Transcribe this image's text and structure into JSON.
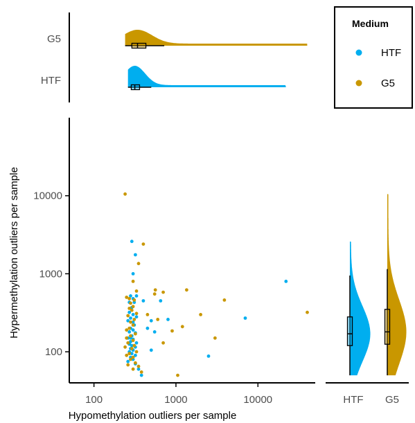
{
  "colors": {
    "HTF": "#00AEEF",
    "G5": "#C99700",
    "axis": "#000000",
    "text": "#4D4D4D"
  },
  "legend": {
    "title": "Medium",
    "items": [
      "HTF",
      "G5"
    ],
    "placement": "top-right"
  },
  "chart_data": [
    {
      "type": "scatter",
      "name": "main",
      "xlabel": "Hypomethylation outliers per sample",
      "ylabel": "Hypermethylation outliers per sample",
      "xscale": "log",
      "yscale": "log",
      "xlim": [
        50,
        50000
      ],
      "ylim": [
        40,
        100000
      ],
      "xticks": [
        100,
        1000,
        10000
      ],
      "xtick_labels": [
        "100",
        "1000",
        "10000"
      ],
      "yticks": [
        100,
        1000,
        10000
      ],
      "ytick_labels": [
        "100",
        "1000",
        "10000"
      ],
      "grid": false,
      "series": [
        {
          "name": "HTF",
          "points": [
            [
              290,
              2600
            ],
            [
              320,
              1750
            ],
            [
              300,
              1000
            ],
            [
              330,
              520
            ],
            [
              280,
              520
            ],
            [
              300,
              480
            ],
            [
              270,
              430
            ],
            [
              310,
              430
            ],
            [
              290,
              370
            ],
            [
              270,
              320
            ],
            [
              300,
              300
            ],
            [
              330,
              280
            ],
            [
              280,
              270
            ],
            [
              260,
              250
            ],
            [
              300,
              240
            ],
            [
              310,
              220
            ],
            [
              280,
              200
            ],
            [
              300,
              190
            ],
            [
              270,
              180
            ],
            [
              320,
              175
            ],
            [
              290,
              160
            ],
            [
              280,
              150
            ],
            [
              260,
              150
            ],
            [
              300,
              145
            ],
            [
              280,
              135
            ],
            [
              330,
              130
            ],
            [
              270,
              125
            ],
            [
              290,
              120
            ],
            [
              320,
              115
            ],
            [
              280,
              110
            ],
            [
              300,
              105
            ],
            [
              270,
              100
            ],
            [
              290,
              95
            ],
            [
              320,
              90
            ],
            [
              280,
              85
            ],
            [
              300,
              80
            ],
            [
              260,
              75
            ],
            [
              320,
              70
            ],
            [
              350,
              60
            ],
            [
              380,
              50
            ],
            [
              450,
              200
            ],
            [
              500,
              250
            ],
            [
              650,
              450
            ],
            [
              800,
              260
            ],
            [
              22000,
              800
            ],
            [
              7000,
              270
            ],
            [
              2500,
              88
            ],
            [
              400,
              450
            ],
            [
              550,
              180
            ],
            [
              500,
              105
            ]
          ]
        },
        {
          "name": "G5",
          "points": [
            [
              240,
              10500
            ],
            [
              400,
              2400
            ],
            [
              350,
              1350
            ],
            [
              300,
              800
            ],
            [
              330,
              600
            ],
            [
              250,
              500
            ],
            [
              270,
              480
            ],
            [
              310,
              460
            ],
            [
              280,
              420
            ],
            [
              300,
              380
            ],
            [
              270,
              360
            ],
            [
              290,
              340
            ],
            [
              330,
              310
            ],
            [
              260,
              290
            ],
            [
              310,
              260
            ],
            [
              280,
              240
            ],
            [
              300,
              220
            ],
            [
              270,
              200
            ],
            [
              250,
              190
            ],
            [
              320,
              170
            ],
            [
              280,
              160
            ],
            [
              250,
              150
            ],
            [
              300,
              140
            ],
            [
              260,
              130
            ],
            [
              310,
              120
            ],
            [
              240,
              115
            ],
            [
              290,
              110
            ],
            [
              330,
              100
            ],
            [
              270,
              95
            ],
            [
              250,
              90
            ],
            [
              300,
              85
            ],
            [
              280,
              80
            ],
            [
              320,
              72
            ],
            [
              260,
              68
            ],
            [
              350,
              65
            ],
            [
              300,
              60
            ],
            [
              380,
              55
            ],
            [
              1050,
              50
            ],
            [
              560,
              620
            ],
            [
              700,
              580
            ],
            [
              1350,
              620
            ],
            [
              550,
              550
            ],
            [
              3900,
              460
            ],
            [
              40000,
              320
            ],
            [
              3000,
              150
            ],
            [
              1200,
              210
            ],
            [
              900,
              185
            ],
            [
              600,
              260
            ],
            [
              450,
              300
            ],
            [
              2000,
              300
            ],
            [
              700,
              130
            ]
          ]
        }
      ]
    },
    {
      "type": "density",
      "name": "top-marginal",
      "axis": "x",
      "categories": [
        "G5",
        "HTF"
      ],
      "boxes": [
        {
          "name": "G5",
          "min": 240,
          "q1": 290,
          "median": 340,
          "q3": 430,
          "max": 720,
          "range_max": 40000
        },
        {
          "name": "HTF",
          "min": 260,
          "q1": 285,
          "median": 315,
          "q3": 360,
          "max": 500,
          "range_max": 22000
        }
      ]
    },
    {
      "type": "density",
      "name": "right-marginal",
      "axis": "y",
      "categories": [
        "HTF",
        "G5"
      ],
      "boxes": [
        {
          "name": "HTF",
          "min": 50,
          "q1": 120,
          "median": 170,
          "q3": 280,
          "max": 950,
          "range_max": 2600
        },
        {
          "name": "G5",
          "min": 50,
          "q1": 125,
          "median": 180,
          "q3": 350,
          "max": 1150,
          "range_max": 10500
        }
      ]
    }
  ]
}
